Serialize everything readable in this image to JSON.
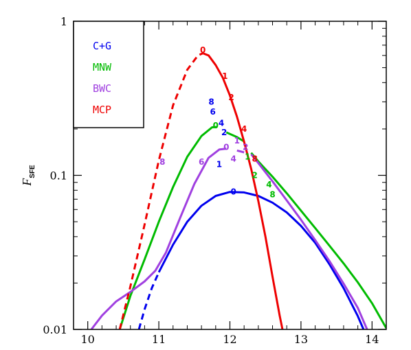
{
  "chart_data": {
    "type": "line",
    "title": "",
    "xlabel": "",
    "ylabel": "F",
    "ylabel_sub": "SFE",
    "xlim": [
      9.8,
      14.2
    ],
    "ylim": [
      0.01,
      1
    ],
    "yscale": "log",
    "grid": false,
    "xticks": [
      {
        "value": 10,
        "label": "10"
      },
      {
        "value": 11,
        "label": "11"
      },
      {
        "value": 12,
        "label": "12"
      },
      {
        "value": 13,
        "label": "13"
      },
      {
        "value": 14,
        "label": "14"
      }
    ],
    "yticks": [
      {
        "value": 0.01,
        "label": "0.01"
      },
      {
        "value": 0.1,
        "label": "0.1"
      },
      {
        "value": 1,
        "label": "1"
      }
    ],
    "legend": {
      "position": "top-left",
      "entries": [
        {
          "label": "C+G",
          "color": "#0000ee"
        },
        {
          "label": "MNW",
          "color": "#00bb00"
        },
        {
          "label": "BWC",
          "color": "#a040e0"
        },
        {
          "label": "MCP",
          "color": "#ee0000"
        }
      ]
    },
    "series": [
      {
        "color": "#0000ee",
        "segments": [
          {
            "style": "dashed",
            "points": [
              [
                10.72,
                0.01
              ],
              [
                10.8,
                0.0135
              ],
              [
                10.9,
                0.0185
              ],
              [
                11.0,
                0.0235
              ]
            ]
          },
          {
            "style": "solid",
            "points": [
              [
                11.0,
                0.0235
              ],
              [
                11.2,
                0.0355
              ],
              [
                11.4,
                0.05
              ],
              [
                11.6,
                0.0635
              ],
              [
                11.8,
                0.0735
              ],
              [
                12.0,
                0.078
              ],
              [
                12.2,
                0.0775
              ],
              [
                12.4,
                0.0735
              ],
              [
                12.6,
                0.0665
              ],
              [
                12.8,
                0.0575
              ],
              [
                13.0,
                0.047
              ],
              [
                13.2,
                0.0365
              ],
              [
                13.4,
                0.0265
              ],
              [
                13.6,
                0.0185
              ],
              [
                13.8,
                0.0122
              ],
              [
                13.88,
                0.01
              ]
            ]
          }
        ]
      },
      {
        "color": "#00bb00",
        "segments": [
          {
            "style": "solid",
            "points": [
              [
                10.45,
                0.01
              ],
              [
                10.6,
                0.0165
              ],
              [
                10.8,
                0.0285
              ],
              [
                11.0,
                0.05
              ],
              [
                11.2,
                0.084
              ],
              [
                11.4,
                0.132
              ],
              [
                11.6,
                0.18
              ],
              [
                11.75,
                0.205
              ],
              [
                11.82,
                0.206
              ]
            ]
          },
          {
            "style": "solid",
            "points": [
              [
                11.95,
                0.19
              ],
              [
                12.1,
                0.177
              ],
              [
                12.2,
                0.166
              ]
            ]
          },
          {
            "style": "solid",
            "points": [
              [
                12.3,
                0.14
              ],
              [
                12.4,
                0.123
              ],
              [
                12.6,
                0.098
              ],
              [
                12.8,
                0.0765
              ],
              [
                13.0,
                0.059
              ],
              [
                13.2,
                0.0455
              ],
              [
                13.4,
                0.035
              ],
              [
                13.6,
                0.0268
              ],
              [
                13.8,
                0.0202
              ],
              [
                14.0,
                0.0148
              ],
              [
                14.2,
                0.0102
              ]
            ]
          }
        ]
      },
      {
        "color": "#a040e0",
        "segments": [
          {
            "style": "solid",
            "points": [
              [
                10.05,
                0.01
              ],
              [
                10.2,
                0.0123
              ],
              [
                10.4,
                0.0152
              ],
              [
                10.6,
                0.0175
              ],
              [
                10.8,
                0.0205
              ],
              [
                10.95,
                0.024
              ],
              [
                11.1,
                0.0315
              ],
              [
                11.3,
                0.053
              ],
              [
                11.5,
                0.088
              ],
              [
                11.7,
                0.13
              ],
              [
                11.85,
                0.147
              ],
              [
                11.95,
                0.149
              ]
            ]
          },
          {
            "style": "solid",
            "points": [
              [
                12.1,
                0.145
              ],
              [
                12.2,
                0.141
              ]
            ]
          },
          {
            "style": "solid",
            "points": [
              [
                12.3,
                0.137
              ],
              [
                12.4,
                0.12
              ],
              [
                12.6,
                0.0915
              ],
              [
                12.8,
                0.0688
              ],
              [
                13.0,
                0.0515
              ],
              [
                13.2,
                0.038
              ],
              [
                13.4,
                0.0278
              ],
              [
                13.6,
                0.0198
              ],
              [
                13.8,
                0.0138
              ],
              [
                13.93,
                0.01
              ]
            ]
          }
        ]
      },
      {
        "color": "#ee0000",
        "segments": [
          {
            "style": "dashed",
            "points": [
              [
                10.45,
                0.01
              ],
              [
                10.6,
                0.019
              ],
              [
                10.8,
                0.048
              ],
              [
                11.0,
                0.125
              ],
              [
                11.2,
                0.285
              ],
              [
                11.4,
                0.485
              ],
              [
                11.55,
                0.6
              ],
              [
                11.62,
                0.62
              ]
            ]
          },
          {
            "style": "solid",
            "points": [
              [
                11.62,
                0.62
              ],
              [
                11.7,
                0.6
              ],
              [
                11.8,
                0.52
              ],
              [
                11.9,
                0.43
              ],
              [
                12.0,
                0.33
              ],
              [
                12.1,
                0.24
              ],
              [
                12.2,
                0.165
              ],
              [
                12.3,
                0.11
              ],
              [
                12.4,
                0.068
              ],
              [
                12.5,
                0.04
              ],
              [
                12.6,
                0.022
              ],
              [
                12.7,
                0.0123
              ],
              [
                12.74,
                0.01
              ]
            ]
          }
        ]
      }
    ],
    "annotations": [
      {
        "text": "0",
        "x": 11.62,
        "y": 0.65,
        "color": "#ee0000"
      },
      {
        "text": "1",
        "x": 11.93,
        "y": 0.44,
        "color": "#ee0000"
      },
      {
        "text": "2",
        "x": 12.02,
        "y": 0.32,
        "color": "#ee0000"
      },
      {
        "text": "4",
        "x": 12.2,
        "y": 0.2,
        "color": "#ee0000"
      },
      {
        "text": "8",
        "x": 12.35,
        "y": 0.128,
        "color": "#ee0000"
      },
      {
        "text": "8",
        "x": 11.74,
        "y": 0.3,
        "color": "#0000ee"
      },
      {
        "text": "6",
        "x": 11.76,
        "y": 0.258,
        "color": "#0000ee"
      },
      {
        "text": "4",
        "x": 11.88,
        "y": 0.218,
        "color": "#0000ee"
      },
      {
        "text": "2",
        "x": 11.92,
        "y": 0.19,
        "color": "#0000ee"
      },
      {
        "text": "1",
        "x": 11.85,
        "y": 0.118,
        "color": "#0000ee"
      },
      {
        "text": "0",
        "x": 12.05,
        "y": 0.078,
        "color": "#0000ee"
      },
      {
        "text": "0",
        "x": 11.8,
        "y": 0.21,
        "color": "#00bb00"
      },
      {
        "text": "1",
        "x": 12.25,
        "y": 0.132,
        "color": "#00bb00"
      },
      {
        "text": "2",
        "x": 12.35,
        "y": 0.1,
        "color": "#00bb00"
      },
      {
        "text": "4",
        "x": 12.55,
        "y": 0.087,
        "color": "#00bb00"
      },
      {
        "text": "8",
        "x": 12.6,
        "y": 0.075,
        "color": "#00bb00"
      },
      {
        "text": "8",
        "x": 11.05,
        "y": 0.122,
        "color": "#a040e0"
      },
      {
        "text": "6",
        "x": 11.6,
        "y": 0.122,
        "color": "#a040e0"
      },
      {
        "text": "0",
        "x": 11.95,
        "y": 0.152,
        "color": "#a040e0"
      },
      {
        "text": "4",
        "x": 12.05,
        "y": 0.128,
        "color": "#a040e0"
      },
      {
        "text": "1",
        "x": 12.1,
        "y": 0.168,
        "color": "#a040e0"
      },
      {
        "text": "2",
        "x": 12.22,
        "y": 0.152,
        "color": "#a040e0"
      }
    ]
  }
}
